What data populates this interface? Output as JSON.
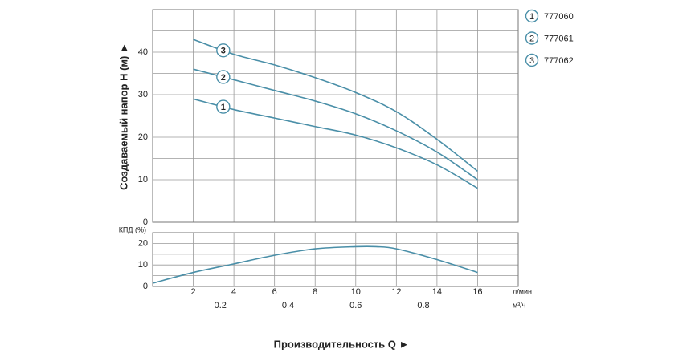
{
  "chart_data": [
    {
      "type": "line",
      "y_title": "Создаваемый напор Н (м) ►",
      "x": [
        2,
        4,
        6,
        8,
        10,
        12,
        14,
        16
      ],
      "series": [
        {
          "name": "777060",
          "marker": "1",
          "color": "#4a8fa8",
          "values": [
            29,
            26.5,
            24.5,
            22.5,
            20.5,
            17.5,
            13.5,
            8
          ]
        },
        {
          "name": "777061",
          "marker": "2",
          "color": "#4a8fa8",
          "values": [
            36,
            33.5,
            31,
            28.5,
            25.5,
            21.5,
            16.5,
            10
          ]
        },
        {
          "name": "777062",
          "marker": "3",
          "color": "#4a8fa8",
          "values": [
            43,
            39.5,
            37,
            34,
            30.5,
            26,
            19.5,
            12
          ]
        }
      ],
      "xlim": [
        0,
        18
      ],
      "xgrid": [
        0,
        2,
        4,
        6,
        8,
        10,
        12,
        14,
        16,
        18
      ],
      "ylim": [
        0,
        50
      ],
      "yticks": [
        0,
        10,
        20,
        30,
        40
      ],
      "ygrid": [
        0,
        5,
        10,
        15,
        20,
        25,
        30,
        35,
        40,
        45,
        50
      ]
    },
    {
      "type": "line",
      "y_title": "КПД (%)",
      "x_title": "Производительность Q ►",
      "x_unit": "л/мин",
      "x2_unit": "м³/ч",
      "x": [
        0,
        2,
        4,
        6,
        8,
        10,
        11,
        12,
        14,
        16
      ],
      "series": [
        {
          "color": "#4a8fa8",
          "values": [
            1.5,
            6.5,
            10.5,
            14.5,
            17.5,
            18.5,
            18.5,
            17.5,
            12.5,
            6.5
          ]
        }
      ],
      "xlim": [
        0,
        18
      ],
      "xticks": [
        2,
        4,
        6,
        8,
        10,
        12,
        14,
        16
      ],
      "xgrid": [
        0,
        2,
        4,
        6,
        8,
        10,
        12,
        14,
        16,
        18
      ],
      "x2lim": [
        0,
        1.08
      ],
      "x2ticks": [
        0.2,
        0.4,
        0.6,
        0.8
      ],
      "ylim": [
        0,
        25
      ],
      "yticks": [
        0,
        10,
        20
      ],
      "ygrid": [
        0,
        5,
        10,
        15,
        20,
        25
      ]
    }
  ]
}
